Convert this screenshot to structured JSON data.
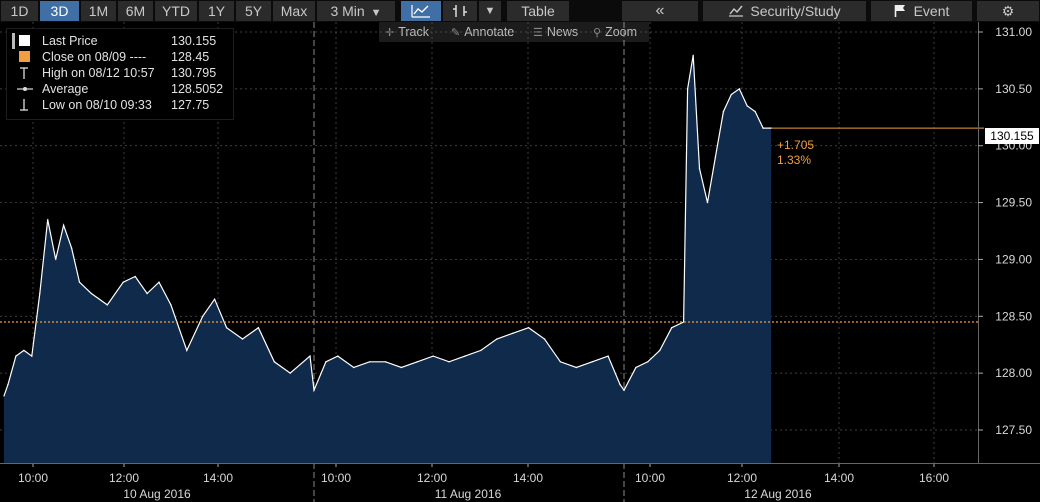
{
  "toolbar": {
    "ranges": [
      "1D",
      "3D",
      "1M",
      "6M",
      "YTD",
      "1Y",
      "5Y",
      "Max"
    ],
    "active_range": "3D",
    "interval": "3 Min",
    "table_label": "Table",
    "collapse_label": "«",
    "security_study_label": "Security/Study",
    "event_label": "Event"
  },
  "subtoolbar": {
    "track": "Track",
    "annotate": "Annotate",
    "news": "News",
    "zoom": "Zoom"
  },
  "legend": [
    {
      "label": "Last Price",
      "value": "130.155",
      "icon": "square-white-icon"
    },
    {
      "label": "Close on 08/09 ----",
      "value": "128.45",
      "icon": "square-orange-icon"
    },
    {
      "label": "High on 08/12 10:57",
      "value": "130.795",
      "icon": "high-marker-icon"
    },
    {
      "label": "Average",
      "value": "128.5052",
      "icon": "average-line-icon"
    },
    {
      "label": "Low on 08/10 09:33",
      "value": "127.75",
      "icon": "low-marker-icon"
    }
  ],
  "last_price_tag": "130.155",
  "change": {
    "abs": "+1.705",
    "pct": "1.33%"
  },
  "colors": {
    "accent": "#f0a040",
    "line": "#ffffff",
    "fill": "#0f2a4a",
    "button_active": "#3f6fa4"
  },
  "chart_data": {
    "type": "area",
    "title": "",
    "ylim": [
      127.5,
      131.0
    ],
    "yticks": [
      "131.00",
      "130.50",
      "130.00",
      "129.50",
      "129.00",
      "128.50",
      "128.00",
      "127.50"
    ],
    "xtick_labels": [
      "10:00",
      "12:00",
      "14:00",
      "10:00",
      "12:00",
      "14:00",
      "10:00",
      "12:00",
      "14:00",
      "16:00"
    ],
    "day_labels": [
      "10 Aug 2016",
      "11 Aug 2016",
      "12 Aug 2016"
    ],
    "close_reference": 128.45,
    "grid": true,
    "series": [
      {
        "x": [
          "08/10 09:30",
          "08/10 09:35",
          "08/10 09:45",
          "08/10 09:55",
          "08/10 10:05",
          "08/10 10:15",
          "08/10 10:25",
          "08/10 10:35",
          "08/10 10:45",
          "08/10 10:55",
          "08/10 11:05",
          "08/10 11:20",
          "08/10 11:40",
          "08/10 12:00",
          "08/10 12:15",
          "08/10 12:30",
          "08/10 12:45",
          "08/10 13:00",
          "08/10 13:20",
          "08/10 13:40",
          "08/10 13:55",
          "08/10 14:10",
          "08/10 14:30",
          "08/10 14:50",
          "08/10 15:10",
          "08/10 15:30",
          "08/10 15:55",
          "08/11 09:30",
          "08/11 09:45",
          "08/11 10:00",
          "08/11 10:20",
          "08/11 10:40",
          "08/11 11:00",
          "08/11 11:20",
          "08/11 11:40",
          "08/11 12:00",
          "08/11 12:20",
          "08/11 12:40",
          "08/11 13:00",
          "08/11 13:20",
          "08/11 13:40",
          "08/11 14:00",
          "08/11 14:20",
          "08/11 14:40",
          "08/11 15:00",
          "08/11 15:20",
          "08/11 15:40",
          "08/11 15:55",
          "08/12 09:30",
          "08/12 09:45",
          "08/12 10:00",
          "08/12 10:15",
          "08/12 10:30",
          "08/12 10:45",
          "08/12 10:50",
          "08/12 10:57",
          "08/12 11:05",
          "08/12 11:15",
          "08/12 11:25",
          "08/12 11:35",
          "08/12 11:45",
          "08/12 11:55",
          "08/12 12:05",
          "08/12 12:15",
          "08/12 12:25",
          "08/12 12:35"
        ],
        "values": [
          127.8,
          127.9,
          128.15,
          128.2,
          128.15,
          128.7,
          129.35,
          129.0,
          129.3,
          129.1,
          128.8,
          128.7,
          128.6,
          128.8,
          128.85,
          128.7,
          128.8,
          128.6,
          128.2,
          128.5,
          128.65,
          128.4,
          128.3,
          128.4,
          128.1,
          128.0,
          128.15,
          127.85,
          128.1,
          128.15,
          128.05,
          128.1,
          128.1,
          128.05,
          128.1,
          128.15,
          128.1,
          128.15,
          128.2,
          128.3,
          128.35,
          128.4,
          128.3,
          128.1,
          128.05,
          128.1,
          128.15,
          127.9,
          127.85,
          128.05,
          128.1,
          128.2,
          128.4,
          128.45,
          130.5,
          130.795,
          129.8,
          129.5,
          129.9,
          130.3,
          130.45,
          130.5,
          130.35,
          130.3,
          130.155,
          130.155
        ]
      }
    ]
  }
}
